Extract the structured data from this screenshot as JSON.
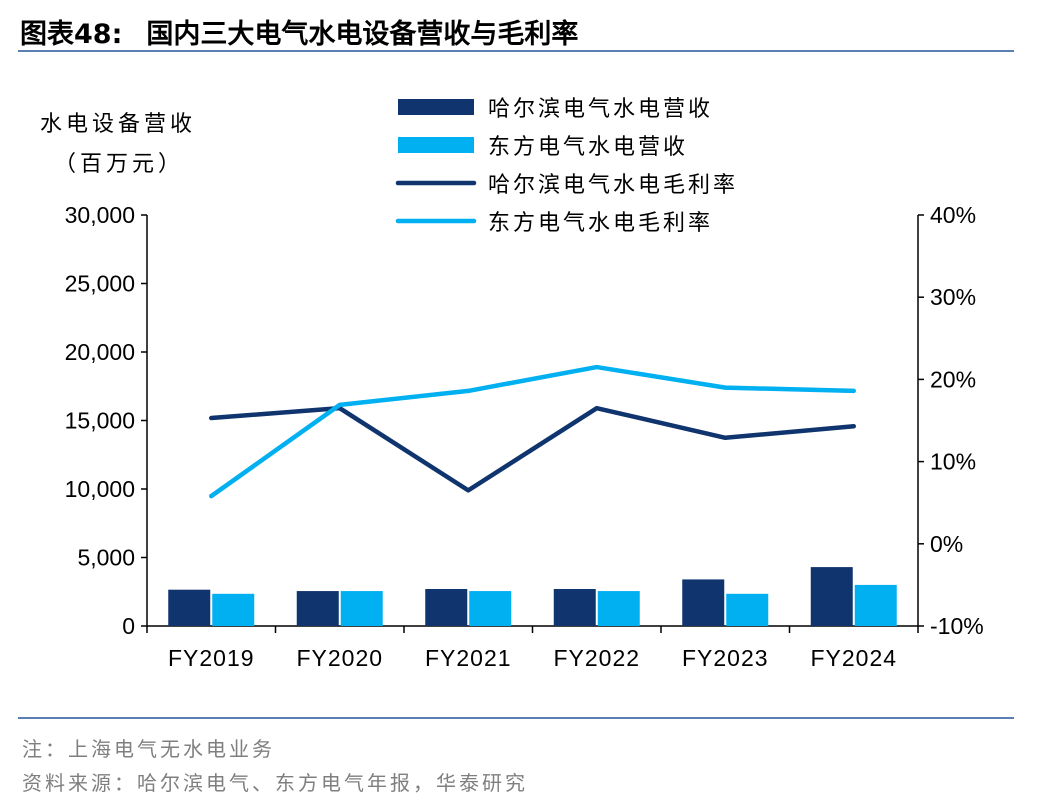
{
  "header": {
    "figure_num": "图表48:",
    "title": "国内三大电气水电设备营收与毛利率"
  },
  "footer": {
    "note": "注：上海电气无水电业务",
    "source": "资料来源：哈尔滨电气、东方电气年报，华泰研究"
  },
  "colors": {
    "dark": "#0f346e",
    "light": "#00b0f0",
    "rule": "#5b7fb4"
  },
  "chart_data": {
    "type": "bar",
    "title": "",
    "ylabel_lines": [
      "水电设备营收",
      "（百万元）"
    ],
    "categories": [
      "FY2019",
      "FY2020",
      "FY2021",
      "FY2022",
      "FY2023",
      "FY2024"
    ],
    "left_axis": {
      "ylim": [
        0,
        30000
      ],
      "ticks": [
        0,
        5000,
        10000,
        15000,
        20000,
        25000,
        30000
      ],
      "tick_labels": [
        "0",
        "5,000",
        "10,000",
        "15,000",
        "20,000",
        "25,000",
        "30,000"
      ]
    },
    "right_axis": {
      "ylim": [
        -10,
        40
      ],
      "ticks": [
        -10,
        0,
        10,
        20,
        30,
        40
      ],
      "tick_labels": [
        "-10%",
        "0%",
        "10%",
        "20%",
        "30%",
        "40%"
      ]
    },
    "bar_series": [
      {
        "name": "哈尔滨电气水电营收",
        "color": "#0f346e",
        "values": [
          2650,
          2550,
          2700,
          2700,
          3400,
          4300
        ]
      },
      {
        "name": "东方电气水电营收",
        "color": "#00b0f0",
        "values": [
          2350,
          2550,
          2550,
          2550,
          2350,
          3000
        ]
      }
    ],
    "line_series": [
      {
        "name": "哈尔滨电气水电毛利率",
        "color": "#0f346e",
        "values": [
          15.3,
          16.5,
          6.5,
          16.5,
          12.9,
          14.3
        ]
      },
      {
        "name": "东方电气水电毛利率",
        "color": "#00b0f0",
        "values": [
          5.8,
          16.9,
          18.6,
          21.5,
          19.0,
          18.6
        ]
      }
    ],
    "legend_position": "top-center",
    "grid": false
  }
}
